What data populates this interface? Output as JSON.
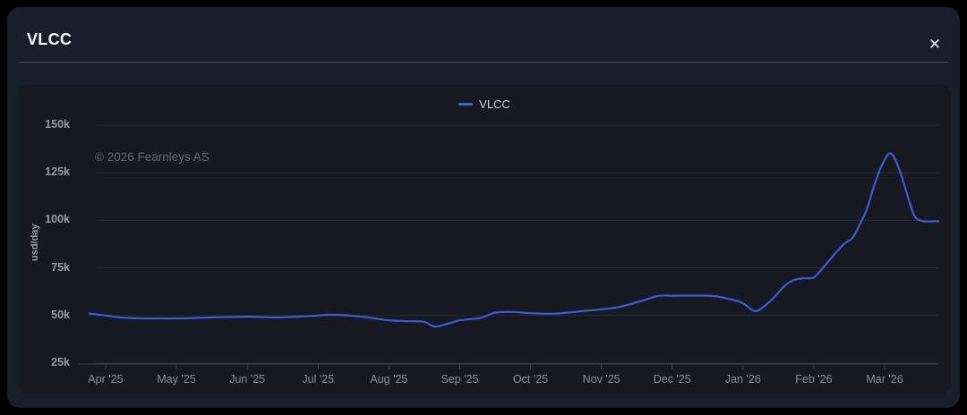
{
  "header": {
    "title": "VLCC",
    "close_label": "✕"
  },
  "colors": {
    "outer_background": "#000000",
    "card_background": "#181e2a",
    "panel_background": "#16191f",
    "line": "#3b5bdb",
    "legend_swatch": "#4263e0",
    "grid": "#262b32",
    "axis": "#41464e",
    "tick_text": "#969da6"
  },
  "chart_data": {
    "type": "line",
    "title": "",
    "xlabel": "",
    "ylabel": "usd/day",
    "watermark": "© 2026 Fearnleys AS",
    "legend_position": "top-center",
    "grid": "horizontal-only",
    "ylim": [
      25,
      150
    ],
    "y_unit": "k usd/day",
    "y_ticks": [
      {
        "v": 25,
        "label": "25k"
      },
      {
        "v": 50,
        "label": "50k"
      },
      {
        "v": 75,
        "label": "75k"
      },
      {
        "v": 100,
        "label": "100k"
      },
      {
        "v": 125,
        "label": "125k"
      },
      {
        "v": 150,
        "label": "150k"
      }
    ],
    "x_ticks": [
      {
        "t": 0,
        "label": "Apr '25"
      },
      {
        "t": 1,
        "label": "May '25"
      },
      {
        "t": 2,
        "label": "Jun '25"
      },
      {
        "t": 3,
        "label": "Jul '25"
      },
      {
        "t": 4,
        "label": "Aug '25"
      },
      {
        "t": 5,
        "label": "Sep '25"
      },
      {
        "t": 6,
        "label": "Oct '25"
      },
      {
        "t": 7,
        "label": "Nov '25"
      },
      {
        "t": 8,
        "label": "Dec '25"
      },
      {
        "t": 9,
        "label": "Jan '26"
      },
      {
        "t": 10,
        "label": "Feb '26"
      },
      {
        "t": 11,
        "label": "Mar '26"
      }
    ],
    "series": [
      {
        "name": "VLCC",
        "color": "#3b5bdb",
        "x_unit": "months since Apr 1 2025",
        "points": [
          [
            -0.23,
            51.0
          ],
          [
            0.0,
            50.0
          ],
          [
            0.25,
            48.9
          ],
          [
            0.6,
            48.5
          ],
          [
            1.0,
            48.5
          ],
          [
            1.4,
            48.9
          ],
          [
            2.0,
            49.4
          ],
          [
            2.4,
            49.0
          ],
          [
            2.75,
            49.5
          ],
          [
            3.0,
            50.0
          ],
          [
            3.15,
            50.4
          ],
          [
            3.45,
            50.0
          ],
          [
            3.7,
            49.0
          ],
          [
            4.0,
            47.5
          ],
          [
            4.3,
            47.0
          ],
          [
            4.5,
            46.7
          ],
          [
            4.65,
            44.2
          ],
          [
            4.85,
            45.9
          ],
          [
            5.0,
            47.5
          ],
          [
            5.3,
            48.8
          ],
          [
            5.5,
            51.5
          ],
          [
            5.75,
            51.9
          ],
          [
            6.0,
            51.2
          ],
          [
            6.35,
            51.0
          ],
          [
            6.7,
            52.2
          ],
          [
            7.0,
            53.3
          ],
          [
            7.25,
            54.5
          ],
          [
            7.55,
            57.5
          ],
          [
            7.8,
            60.3
          ],
          [
            8.0,
            60.4
          ],
          [
            8.3,
            60.5
          ],
          [
            8.6,
            60.2
          ],
          [
            8.85,
            58.3
          ],
          [
            9.0,
            56.5
          ],
          [
            9.17,
            52.3
          ],
          [
            9.32,
            55.5
          ],
          [
            9.45,
            60.0
          ],
          [
            9.57,
            65.0
          ],
          [
            9.7,
            68.4
          ],
          [
            9.85,
            69.6
          ],
          [
            10.0,
            70.0
          ],
          [
            10.15,
            76.0
          ],
          [
            10.3,
            82.5
          ],
          [
            10.43,
            87.7
          ],
          [
            10.55,
            91.0
          ],
          [
            10.65,
            98.0
          ],
          [
            10.75,
            106.0
          ],
          [
            10.85,
            118.0
          ],
          [
            10.95,
            128.0
          ],
          [
            11.08,
            135.3
          ],
          [
            11.2,
            127.5
          ],
          [
            11.3,
            116.0
          ],
          [
            11.42,
            102.5
          ],
          [
            11.55,
            99.6
          ],
          [
            11.76,
            99.6
          ]
        ]
      }
    ]
  }
}
